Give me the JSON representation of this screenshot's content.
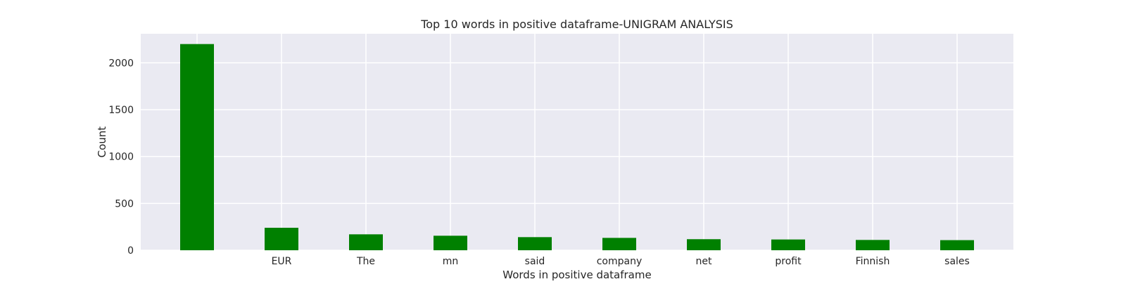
{
  "chart_data": {
    "type": "bar",
    "title": "Top 10 words in positive dataframe-UNIGRAM ANALYSIS",
    "xlabel": "Words in positive dataframe",
    "ylabel": "Count",
    "categories": [
      "",
      "EUR",
      "The",
      "mn",
      "said",
      "company",
      "net",
      "profit",
      "Finnish",
      "sales"
    ],
    "values": [
      2200,
      240,
      170,
      155,
      140,
      132,
      118,
      115,
      110,
      108
    ],
    "ylim": [
      0,
      2310
    ],
    "yticks": [
      0,
      500,
      1000,
      1500,
      2000
    ],
    "grid": true,
    "legend": "none",
    "colors": {
      "bar": "#008000",
      "plot_background": "#EAEAF2",
      "grid": "#FFFFFF",
      "text": "#262626"
    }
  }
}
